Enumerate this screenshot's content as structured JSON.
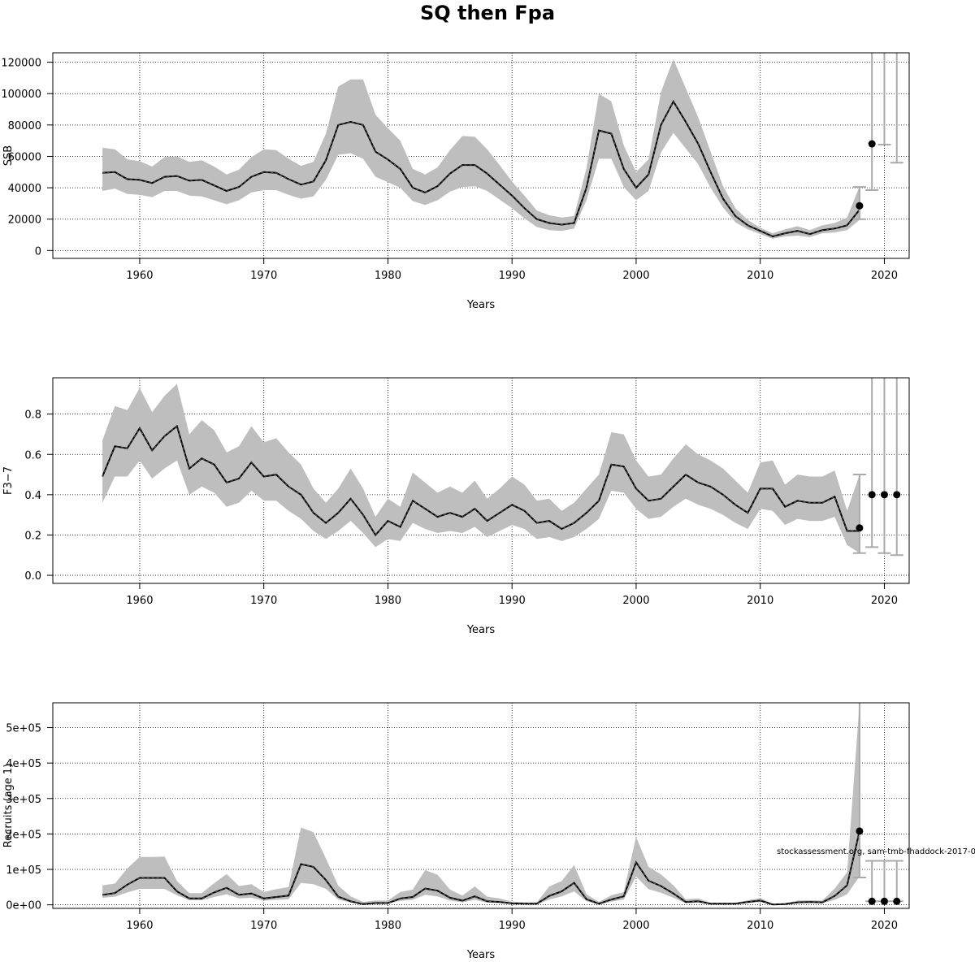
{
  "title": "SQ then Fpa",
  "credit": "stockassessment.org, sam-tmb-fhaddock-2017-0",
  "colors": {
    "band": "#bebebe",
    "line": "#000000",
    "dash": "#555555",
    "grid": "#000000",
    "whisker": "#aaaaaa"
  },
  "chart_data": [
    {
      "type": "area",
      "name": "ssb",
      "xlabel": "Years",
      "ylabel": "SSB",
      "xlim": [
        1953,
        2022
      ],
      "ylim": [
        -5000,
        126000
      ],
      "xticks": [
        1960,
        1970,
        1980,
        1990,
        2000,
        2010,
        2020
      ],
      "yticks": [
        0,
        20000,
        40000,
        60000,
        80000,
        100000,
        120000
      ],
      "ytick_labels": [
        "0",
        "20000",
        "40000",
        "60000",
        "80000",
        "100000",
        "120000"
      ],
      "grid": true,
      "x": [
        1957,
        1958,
        1959,
        1960,
        1961,
        1962,
        1963,
        1964,
        1965,
        1966,
        1967,
        1968,
        1969,
        1970,
        1971,
        1972,
        1973,
        1974,
        1975,
        1976,
        1977,
        1978,
        1979,
        1980,
        1981,
        1982,
        1983,
        1984,
        1985,
        1986,
        1987,
        1988,
        1989,
        1990,
        1991,
        1992,
        1993,
        1994,
        1995,
        1996,
        1997,
        1998,
        1999,
        2000,
        2001,
        2002,
        2003,
        2004,
        2005,
        2006,
        2007,
        2008,
        2009,
        2010,
        2011,
        2012,
        2013,
        2014,
        2015,
        2016,
        2017,
        2018
      ],
      "estimate": [
        49500,
        50000,
        45500,
        45000,
        43000,
        47000,
        47500,
        44500,
        45000,
        41500,
        38000,
        40500,
        47000,
        50000,
        49500,
        45500,
        42000,
        44000,
        57500,
        80000,
        82000,
        80000,
        63000,
        58000,
        52000,
        40000,
        37000,
        41000,
        49000,
        54500,
        54500,
        49000,
        42000,
        35000,
        27000,
        20000,
        17500,
        16500,
        17500,
        40000,
        76500,
        74500,
        52000,
        40000,
        48500,
        80000,
        95000,
        82000,
        68000,
        50000,
        33000,
        22000,
        16000,
        12500,
        9000,
        11000,
        12500,
        10500,
        13000,
        14000,
        16000,
        26000
      ],
      "lower": [
        38000,
        39500,
        36000,
        35500,
        34000,
        38000,
        38000,
        35000,
        34500,
        32000,
        29500,
        32000,
        37000,
        38500,
        38500,
        35500,
        33000,
        34500,
        45000,
        61000,
        62000,
        58500,
        47000,
        43500,
        40000,
        31500,
        29000,
        32000,
        37500,
        40500,
        41000,
        38000,
        32500,
        27000,
        20500,
        15000,
        13000,
        12500,
        14000,
        32000,
        58500,
        58500,
        40500,
        32000,
        38000,
        62500,
        75000,
        65000,
        55000,
        40000,
        27500,
        18000,
        13500,
        10500,
        7500,
        9000,
        9500,
        8500,
        11000,
        11500,
        13000,
        19500
      ],
      "upper": [
        65500,
        64500,
        58000,
        57000,
        53500,
        59500,
        60000,
        56500,
        57500,
        53500,
        48500,
        51500,
        59500,
        64500,
        64000,
        58500,
        54000,
        56500,
        74500,
        104500,
        109000,
        109000,
        86500,
        78000,
        70000,
        52000,
        48500,
        53000,
        64000,
        73000,
        72500,
        64500,
        54500,
        44000,
        35000,
        25500,
        22500,
        21000,
        22000,
        52500,
        100000,
        95000,
        67000,
        50000,
        58000,
        101000,
        122000,
        103500,
        85000,
        63000,
        41000,
        27000,
        19500,
        14500,
        11000,
        13500,
        15500,
        13000,
        16000,
        17500,
        21000,
        41000
      ],
      "points": [
        {
          "x": 2018,
          "y": 28500,
          "lo": 20000,
          "hi": 40500
        },
        {
          "x": 2019,
          "y": 68000,
          "lo": 38500,
          "hi": 126000
        },
        {
          "x": 2020,
          "y": null,
          "lo": 67500,
          "hi": 126000
        },
        {
          "x": 2021,
          "y": null,
          "lo": 56000,
          "hi": 126000
        }
      ]
    },
    {
      "type": "area",
      "name": "fbar",
      "xlabel": "Years",
      "ylabel": "F3−7",
      "xlim": [
        1953,
        2022
      ],
      "ylim": [
        -0.04,
        0.98
      ],
      "xticks": [
        1960,
        1970,
        1980,
        1990,
        2000,
        2010,
        2020
      ],
      "yticks": [
        0.0,
        0.2,
        0.4,
        0.6,
        0.8
      ],
      "ytick_labels": [
        "0.0",
        "0.2",
        "0.4",
        "0.6",
        "0.8"
      ],
      "grid": true,
      "x": [
        1957,
        1958,
        1959,
        1960,
        1961,
        1962,
        1963,
        1964,
        1965,
        1966,
        1967,
        1968,
        1969,
        1970,
        1971,
        1972,
        1973,
        1974,
        1975,
        1976,
        1977,
        1978,
        1979,
        1980,
        1981,
        1982,
        1983,
        1984,
        1985,
        1986,
        1987,
        1988,
        1989,
        1990,
        1991,
        1992,
        1993,
        1994,
        1995,
        1996,
        1997,
        1998,
        1999,
        2000,
        2001,
        2002,
        2003,
        2004,
        2005,
        2006,
        2007,
        2008,
        2009,
        2010,
        2011,
        2012,
        2013,
        2014,
        2015,
        2016,
        2017,
        2018
      ],
      "estimate": [
        0.49,
        0.64,
        0.63,
        0.73,
        0.62,
        0.69,
        0.74,
        0.53,
        0.58,
        0.55,
        0.46,
        0.48,
        0.56,
        0.49,
        0.5,
        0.44,
        0.4,
        0.31,
        0.26,
        0.31,
        0.38,
        0.3,
        0.2,
        0.27,
        0.24,
        0.37,
        0.33,
        0.29,
        0.31,
        0.29,
        0.33,
        0.27,
        0.31,
        0.35,
        0.32,
        0.26,
        0.27,
        0.23,
        0.26,
        0.31,
        0.37,
        0.55,
        0.54,
        0.43,
        0.37,
        0.38,
        0.44,
        0.5,
        0.46,
        0.44,
        0.4,
        0.35,
        0.31,
        0.43,
        0.43,
        0.34,
        0.37,
        0.36,
        0.36,
        0.39,
        0.22,
        0.22
      ],
      "lower": [
        0.36,
        0.49,
        0.49,
        0.57,
        0.48,
        0.53,
        0.57,
        0.4,
        0.44,
        0.41,
        0.34,
        0.36,
        0.42,
        0.37,
        0.37,
        0.32,
        0.28,
        0.22,
        0.18,
        0.22,
        0.27,
        0.21,
        0.14,
        0.18,
        0.17,
        0.26,
        0.23,
        0.21,
        0.22,
        0.21,
        0.24,
        0.19,
        0.22,
        0.25,
        0.23,
        0.18,
        0.19,
        0.17,
        0.19,
        0.23,
        0.28,
        0.42,
        0.41,
        0.33,
        0.28,
        0.29,
        0.34,
        0.38,
        0.35,
        0.33,
        0.3,
        0.26,
        0.23,
        0.33,
        0.32,
        0.25,
        0.28,
        0.27,
        0.27,
        0.29,
        0.15,
        0.11
      ],
      "upper": [
        0.67,
        0.84,
        0.82,
        0.93,
        0.81,
        0.89,
        0.95,
        0.7,
        0.77,
        0.72,
        0.61,
        0.64,
        0.74,
        0.66,
        0.68,
        0.61,
        0.55,
        0.43,
        0.36,
        0.43,
        0.53,
        0.43,
        0.29,
        0.38,
        0.34,
        0.51,
        0.46,
        0.41,
        0.44,
        0.41,
        0.47,
        0.38,
        0.43,
        0.49,
        0.45,
        0.37,
        0.38,
        0.32,
        0.36,
        0.43,
        0.5,
        0.71,
        0.7,
        0.57,
        0.49,
        0.5,
        0.58,
        0.65,
        0.6,
        0.57,
        0.53,
        0.47,
        0.41,
        0.56,
        0.57,
        0.45,
        0.5,
        0.49,
        0.49,
        0.52,
        0.32,
        0.5
      ],
      "points": [
        {
          "x": 2018,
          "y": 0.235,
          "lo": 0.11,
          "hi": 0.5
        },
        {
          "x": 2019,
          "y": 0.4,
          "lo": 0.14,
          "hi": 0.98
        },
        {
          "x": 2020,
          "y": 0.4,
          "lo": 0.11,
          "hi": 0.98
        },
        {
          "x": 2021,
          "y": 0.4,
          "lo": 0.1,
          "hi": 0.98
        }
      ]
    },
    {
      "type": "area",
      "name": "recruits",
      "xlabel": "Years",
      "ylabel": "Recruits (age 1)",
      "xlim": [
        1953,
        2022
      ],
      "ylim": [
        -10000,
        570000
      ],
      "xticks": [
        1960,
        1970,
        1980,
        1990,
        2000,
        2010,
        2020
      ],
      "yticks": [
        0,
        100000,
        200000,
        300000,
        400000,
        500000
      ],
      "ytick_labels": [
        "0e+00",
        "1e+05",
        "2e+05",
        "3e+05",
        "4e+05",
        "5e+05"
      ],
      "grid": true,
      "x": [
        1957,
        1958,
        1959,
        1960,
        1961,
        1962,
        1963,
        1964,
        1965,
        1966,
        1967,
        1968,
        1969,
        1970,
        1971,
        1972,
        1973,
        1974,
        1975,
        1976,
        1977,
        1978,
        1979,
        1980,
        1981,
        1982,
        1983,
        1984,
        1985,
        1986,
        1987,
        1988,
        1989,
        1990,
        1991,
        1992,
        1993,
        1994,
        1995,
        1996,
        1997,
        1998,
        1999,
        2000,
        2001,
        2002,
        2003,
        2004,
        2005,
        2006,
        2007,
        2008,
        2009,
        2010,
        2011,
        2012,
        2013,
        2014,
        2015,
        2016,
        2017,
        2018
      ],
      "estimate": [
        28000,
        33000,
        57000,
        76000,
        76000,
        76000,
        38000,
        18000,
        18000,
        35000,
        48000,
        28000,
        32000,
        18000,
        22000,
        26000,
        115000,
        107000,
        70000,
        23000,
        10000,
        2000,
        5000,
        5000,
        18000,
        22000,
        46000,
        40000,
        20000,
        12000,
        24000,
        10000,
        8000,
        4000,
        3000,
        3000,
        25000,
        38000,
        62000,
        16000,
        3000,
        15000,
        24000,
        120000,
        68000,
        53000,
        32000,
        8000,
        10000,
        3000,
        3000,
        3000,
        8000,
        12000,
        1000,
        2000,
        7000,
        8000,
        7000,
        25000,
        55000,
        208000
      ],
      "lower": [
        20000,
        23000,
        35000,
        45000,
        45000,
        45000,
        27000,
        13000,
        13000,
        22000,
        30000,
        18000,
        20000,
        12000,
        14000,
        16000,
        62000,
        58000,
        45000,
        15000,
        6000,
        0,
        3000,
        3000,
        11000,
        14000,
        28000,
        24000,
        12000,
        7000,
        14000,
        6000,
        5000,
        2000,
        1000,
        1000,
        15000,
        24000,
        38000,
        10000,
        1000,
        9000,
        15000,
        80000,
        44000,
        34000,
        20000,
        4000,
        6000,
        1000,
        1000,
        1000,
        5000,
        8000,
        0,
        1000,
        4000,
        5000,
        4000,
        14000,
        30000,
        80000
      ],
      "upper": [
        55000,
        60000,
        103000,
        135000,
        135000,
        136000,
        67000,
        33000,
        33000,
        61000,
        87000,
        53000,
        58000,
        36000,
        44000,
        50000,
        218000,
        205000,
        131000,
        54000,
        24000,
        8000,
        12000,
        12000,
        36000,
        43000,
        98000,
        85000,
        43000,
        26000,
        52000,
        23000,
        18000,
        9000,
        7000,
        7000,
        52000,
        67000,
        112000,
        30000,
        8000,
        27000,
        36000,
        192000,
        107000,
        86000,
        55000,
        16000,
        18000,
        6000,
        6000,
        6000,
        13000,
        19000,
        3000,
        5000,
        12000,
        13000,
        12000,
        46000,
        92000,
        570000
      ],
      "points": [
        {
          "x": 2018,
          "y": 208000,
          "lo": 77000,
          "hi": 570000
        },
        {
          "x": 2019,
          "y": 10000,
          "lo": 10000,
          "hi": 124000
        },
        {
          "x": 2020,
          "y": 10000,
          "lo": 10000,
          "hi": 124000
        },
        {
          "x": 2021,
          "y": 10000,
          "lo": 10000,
          "hi": 124000
        }
      ]
    }
  ]
}
